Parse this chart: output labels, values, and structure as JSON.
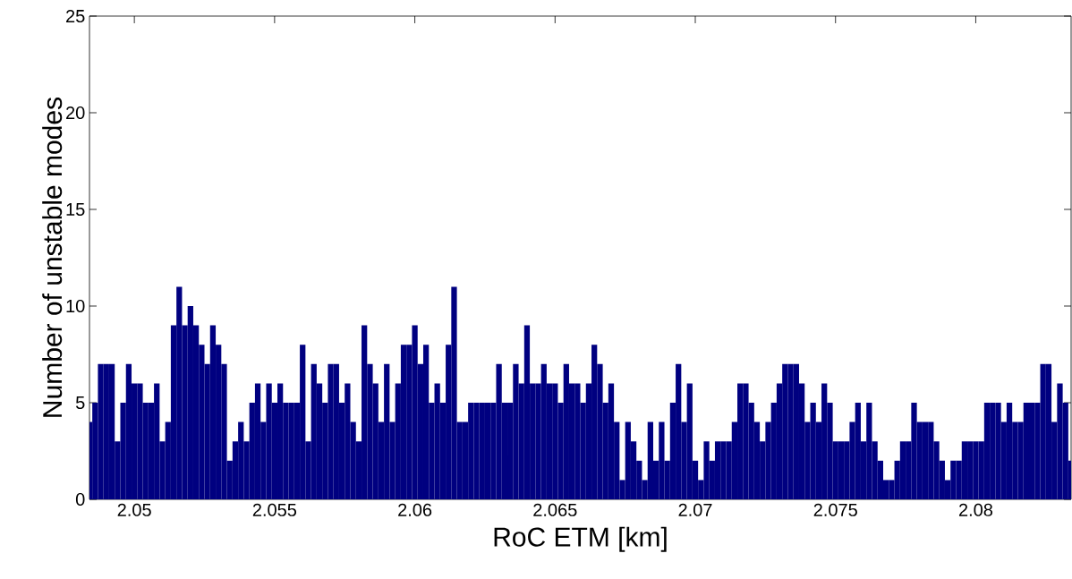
{
  "chart_data": {
    "type": "bar",
    "xlabel": "RoC ETM [km]",
    "ylabel": "Number of unstable modes",
    "x": [
      2.0484,
      2.0486,
      2.0488,
      2.049,
      2.0492,
      2.0494,
      2.0496,
      2.0498,
      2.05,
      2.0502,
      2.0504,
      2.0506,
      2.0508,
      2.051,
      2.0512,
      2.0514,
      2.0516,
      2.0518,
      2.052,
      2.0522,
      2.0524,
      2.0526,
      2.0528,
      2.053,
      2.0532,
      2.0534,
      2.0536,
      2.0538,
      2.054,
      2.0542,
      2.0544,
      2.0546,
      2.0548,
      2.055,
      2.0552,
      2.0554,
      2.0556,
      2.0558,
      2.056,
      2.0562,
      2.0564,
      2.0566,
      2.0568,
      2.057,
      2.0572,
      2.0574,
      2.0576,
      2.0578,
      2.058,
      2.0582,
      2.0584,
      2.0586,
      2.0588,
      2.059,
      2.0592,
      2.0594,
      2.0596,
      2.0598,
      2.06,
      2.0602,
      2.0604,
      2.0606,
      2.0608,
      2.061,
      2.0612,
      2.0614,
      2.0616,
      2.0618,
      2.062,
      2.0622,
      2.0624,
      2.0626,
      2.0628,
      2.063,
      2.0632,
      2.0634,
      2.0636,
      2.0638,
      2.064,
      2.0642,
      2.0644,
      2.0646,
      2.0648,
      2.065,
      2.0652,
      2.0654,
      2.0656,
      2.0658,
      2.066,
      2.0662,
      2.0664,
      2.0666,
      2.0668,
      2.067,
      2.0672,
      2.0674,
      2.0676,
      2.0678,
      2.068,
      2.0682,
      2.0684,
      2.0686,
      2.0688,
      2.069,
      2.0692,
      2.0694,
      2.0696,
      2.0698,
      2.07,
      2.0702,
      2.0704,
      2.0706,
      2.0708,
      2.071,
      2.0712,
      2.0714,
      2.0716,
      2.0718,
      2.072,
      2.0722,
      2.0724,
      2.0726,
      2.0728,
      2.073,
      2.0732,
      2.0734,
      2.0736,
      2.0738,
      2.074,
      2.0742,
      2.0744,
      2.0746,
      2.0748,
      2.075,
      2.0752,
      2.0754,
      2.0756,
      2.0758,
      2.076,
      2.0762,
      2.0764,
      2.0766,
      2.0768,
      2.077,
      2.0772,
      2.0774,
      2.0776,
      2.0778,
      2.078,
      2.0782,
      2.0784,
      2.0786,
      2.0788,
      2.079,
      2.0792,
      2.0794,
      2.0796,
      2.0798,
      2.08,
      2.0802,
      2.0804,
      2.0806,
      2.0808,
      2.081,
      2.0812,
      2.0814,
      2.0816,
      2.0818,
      2.082,
      2.0822,
      2.0824,
      2.0826,
      2.0828,
      2.083,
      2.0832,
      2.0834
    ],
    "values": [
      4,
      5,
      7,
      7,
      7,
      3,
      5,
      7,
      6,
      6,
      5,
      5,
      6,
      3,
      4,
      9,
      11,
      9,
      10,
      9,
      8,
      7,
      9,
      8,
      7,
      2,
      3,
      4,
      3,
      5,
      6,
      4,
      6,
      5,
      6,
      5,
      5,
      5,
      8,
      3,
      7,
      6,
      5,
      7,
      7,
      5,
      6,
      4,
      3,
      9,
      7,
      6,
      4,
      7,
      4,
      6,
      8,
      8,
      9,
      7,
      8,
      5,
      6,
      5,
      8,
      11,
      4,
      4,
      5,
      5,
      5,
      5,
      5,
      7,
      5,
      5,
      7,
      6,
      9,
      6,
      6,
      7,
      6,
      6,
      5,
      7,
      6,
      6,
      5,
      6,
      8,
      7,
      5,
      6,
      4,
      1,
      4,
      3,
      2,
      1,
      4,
      2,
      4,
      2,
      5,
      7,
      4,
      6,
      2,
      1,
      3,
      2,
      3,
      3,
      3,
      4,
      6,
      6,
      5,
      4,
      3,
      4,
      5,
      6,
      7,
      7,
      7,
      6,
      4,
      5,
      4,
      6,
      5,
      3,
      3,
      3,
      4,
      5,
      3,
      5,
      3,
      2,
      1,
      1,
      2,
      3,
      3,
      5,
      4,
      4,
      4,
      3,
      2,
      1,
      2,
      2,
      3,
      3,
      3,
      3,
      5,
      5,
      5,
      4,
      5,
      4,
      4,
      5,
      5,
      5,
      7,
      7,
      4,
      6,
      5,
      2
    ],
    "color": "#000080",
    "xlim": [
      2.0484,
      2.0834
    ],
    "ylim": [
      0,
      25
    ],
    "xticks": [
      2.05,
      2.055,
      2.06,
      2.065,
      2.07,
      2.075,
      2.08
    ],
    "yticks": [
      0,
      5,
      10,
      15,
      20,
      25
    ]
  }
}
